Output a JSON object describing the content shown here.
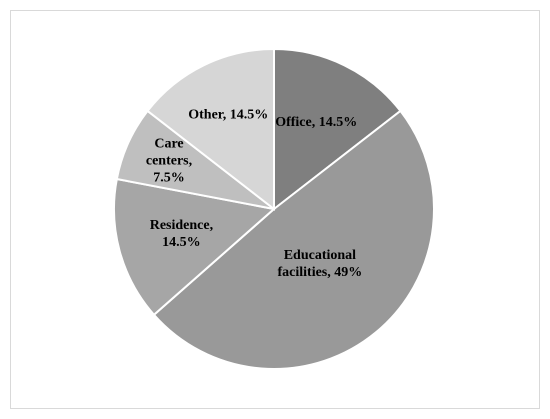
{
  "chart_data": {
    "type": "pie",
    "values": [
      14.5,
      49,
      14.5,
      7.5,
      14.5
    ],
    "value_labels": [
      "Office, 14.5%",
      "Educational facilities, 49%",
      "Residence, 14.5%",
      "Care centers, 7.5%",
      "Other, 14.5%"
    ],
    "colors": [
      "#7f7f7f",
      "#999999",
      "#a6a6a6",
      "#bfbfbf",
      "#d6d6d6"
    ]
  }
}
